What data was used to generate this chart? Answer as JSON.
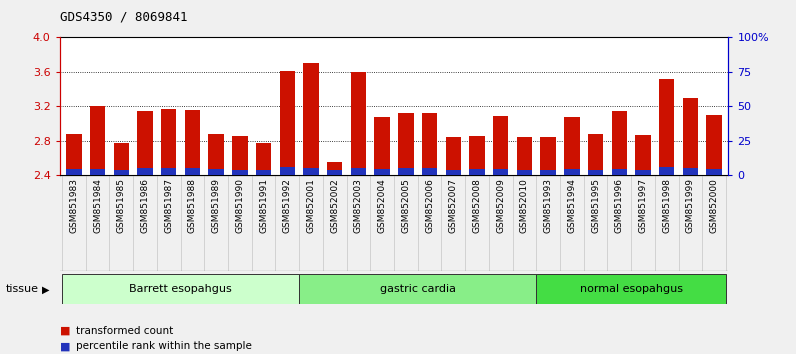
{
  "title": "GDS4350 / 8069841",
  "samples": [
    "GSM851983",
    "GSM851984",
    "GSM851985",
    "GSM851986",
    "GSM851987",
    "GSM851988",
    "GSM851989",
    "GSM851990",
    "GSM851991",
    "GSM851992",
    "GSM852001",
    "GSM852002",
    "GSM852003",
    "GSM852004",
    "GSM852005",
    "GSM852006",
    "GSM852007",
    "GSM852008",
    "GSM852009",
    "GSM852010",
    "GSM851993",
    "GSM851994",
    "GSM851995",
    "GSM851996",
    "GSM851997",
    "GSM851998",
    "GSM851999",
    "GSM852000"
  ],
  "red_values": [
    2.88,
    3.2,
    2.77,
    3.15,
    3.17,
    3.16,
    2.88,
    2.85,
    2.77,
    3.61,
    3.7,
    2.55,
    3.6,
    3.08,
    3.12,
    3.12,
    2.84,
    2.85,
    3.09,
    2.84,
    2.84,
    3.08,
    2.88,
    3.15,
    2.87,
    3.52,
    3.3,
    3.1
  ],
  "blue_heights": [
    0.07,
    0.07,
    0.06,
    0.08,
    0.08,
    0.08,
    0.07,
    0.06,
    0.06,
    0.09,
    0.08,
    0.06,
    0.08,
    0.07,
    0.08,
    0.08,
    0.06,
    0.07,
    0.07,
    0.06,
    0.06,
    0.07,
    0.06,
    0.07,
    0.06,
    0.1,
    0.08,
    0.07
  ],
  "groups": [
    {
      "label": "Barrett esopahgus",
      "start": 0,
      "end": 10,
      "color": "#ccffcc"
    },
    {
      "label": "gastric cardia",
      "start": 10,
      "end": 20,
      "color": "#88ee88"
    },
    {
      "label": "normal esopahgus",
      "start": 20,
      "end": 28,
      "color": "#44dd44"
    }
  ],
  "ymin": 2.4,
  "ymax": 4.0,
  "yticks_left": [
    2.4,
    2.8,
    3.2,
    3.6,
    4.0
  ],
  "yticks_right_pct": [
    0,
    25,
    50,
    75,
    100
  ],
  "yticks_right_labels": [
    "0",
    "25",
    "50",
    "75",
    "100%"
  ],
  "bar_color": "#cc1100",
  "blue_color": "#2233bb",
  "left_axis_color": "#cc0000",
  "right_axis_color": "#0000cc",
  "fig_bg": "#f0f0f0",
  "plot_bg": "#ffffff",
  "label_area_bg": "#d8d8d8",
  "legend_items": [
    "transformed count",
    "percentile rank within the sample"
  ]
}
